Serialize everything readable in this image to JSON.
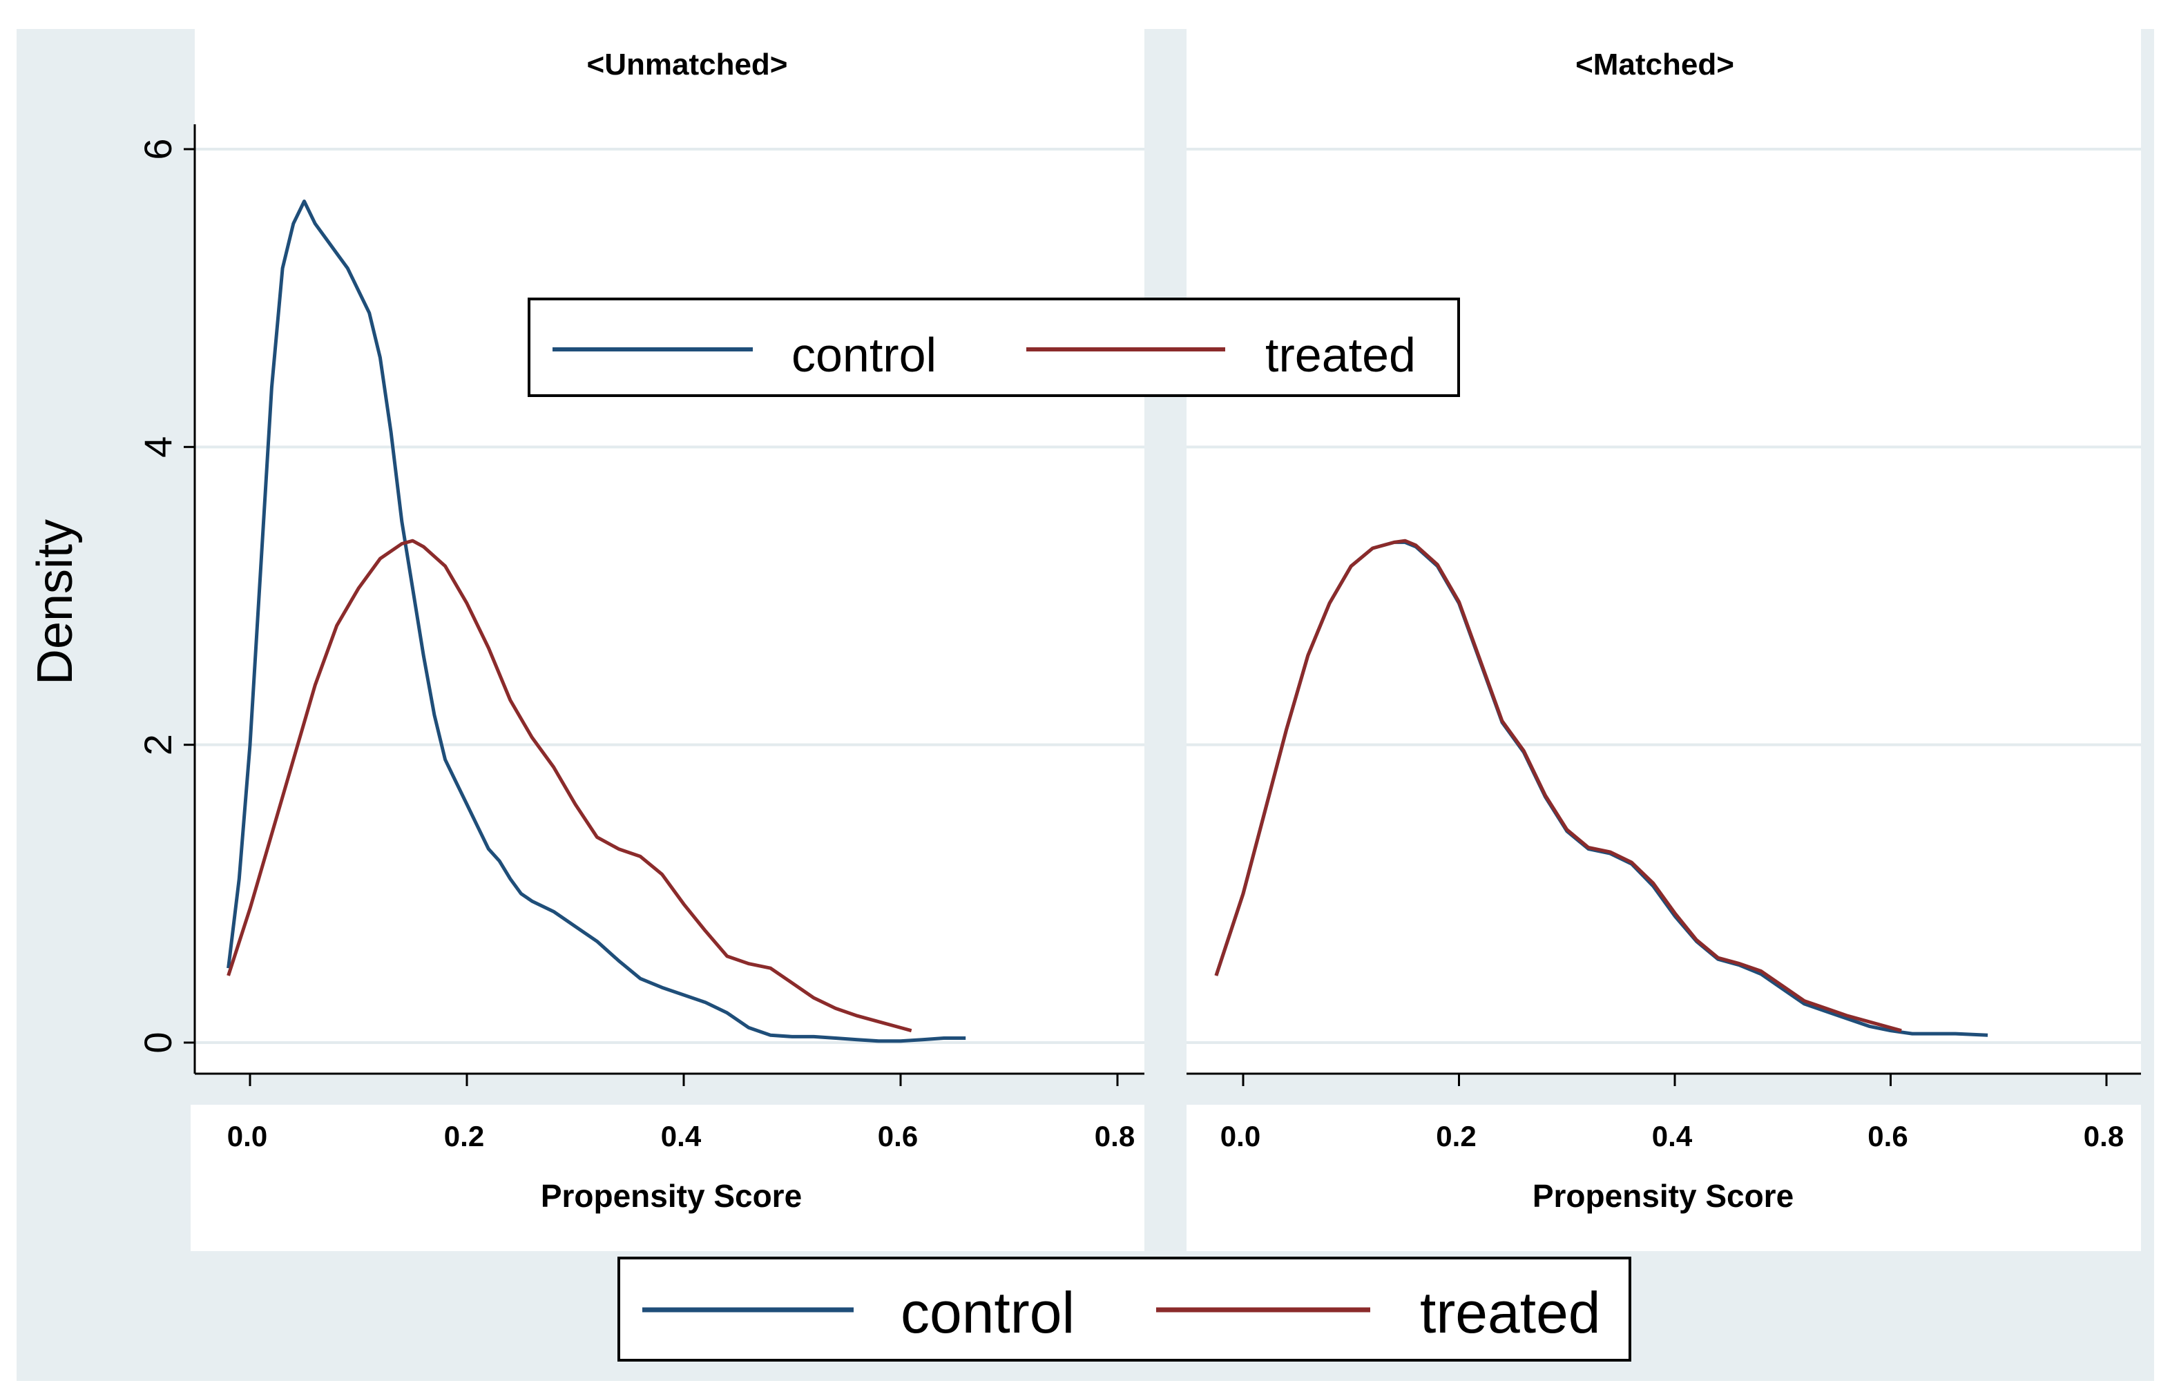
{
  "chart_data": {
    "type": "line",
    "ylabel": "Density",
    "xlabel": "Propensity Score",
    "xlim": [
      -0.03,
      0.8
    ],
    "ylim": [
      0,
      6
    ],
    "xticks": [
      "0.0",
      "0.2",
      "0.4",
      "0.6",
      "0.8"
    ],
    "yticks": [
      "0",
      "2",
      "4",
      "6"
    ],
    "legend": {
      "entries": [
        "control",
        "treated"
      ],
      "placement": "top-center (inside left panel) and bottom (below panels)"
    },
    "colors": {
      "control": "#1f4e79",
      "treated": "#8b2b2b"
    },
    "panels": [
      {
        "title": "<Unmatched>",
        "series": [
          {
            "name": "control",
            "x": [
              -0.02,
              -0.01,
              0.0,
              0.01,
              0.02,
              0.03,
              0.04,
              0.05,
              0.06,
              0.07,
              0.08,
              0.09,
              0.1,
              0.11,
              0.12,
              0.13,
              0.14,
              0.15,
              0.16,
              0.17,
              0.18,
              0.19,
              0.2,
              0.21,
              0.22,
              0.23,
              0.24,
              0.25,
              0.26,
              0.28,
              0.3,
              0.32,
              0.34,
              0.36,
              0.38,
              0.4,
              0.42,
              0.44,
              0.46,
              0.48,
              0.5,
              0.52,
              0.54,
              0.56,
              0.58,
              0.6,
              0.62,
              0.64,
              0.66
            ],
            "values": [
              0.5,
              1.1,
              2.0,
              3.2,
              4.4,
              5.2,
              5.5,
              5.65,
              5.5,
              5.4,
              5.3,
              5.2,
              5.05,
              4.9,
              4.6,
              4.1,
              3.5,
              3.05,
              2.6,
              2.2,
              1.9,
              1.75,
              1.6,
              1.45,
              1.3,
              1.22,
              1.1,
              1.0,
              0.95,
              0.88,
              0.78,
              0.68,
              0.55,
              0.43,
              0.37,
              0.32,
              0.27,
              0.2,
              0.1,
              0.05,
              0.04,
              0.04,
              0.03,
              0.02,
              0.01,
              0.01,
              0.02,
              0.03,
              0.03
            ]
          },
          {
            "name": "treated",
            "x": [
              -0.02,
              0.0,
              0.02,
              0.04,
              0.06,
              0.08,
              0.1,
              0.12,
              0.14,
              0.15,
              0.16,
              0.18,
              0.2,
              0.22,
              0.24,
              0.26,
              0.28,
              0.3,
              0.32,
              0.34,
              0.36,
              0.38,
              0.4,
              0.42,
              0.44,
              0.46,
              0.48,
              0.5,
              0.52,
              0.54,
              0.56,
              0.58,
              0.6,
              0.61
            ],
            "values": [
              0.45,
              0.9,
              1.4,
              1.9,
              2.4,
              2.8,
              3.05,
              3.25,
              3.35,
              3.37,
              3.33,
              3.2,
              2.95,
              2.65,
              2.3,
              2.05,
              1.85,
              1.6,
              1.38,
              1.3,
              1.25,
              1.13,
              0.93,
              0.75,
              0.58,
              0.53,
              0.5,
              0.4,
              0.3,
              0.23,
              0.18,
              0.14,
              0.1,
              0.08
            ]
          }
        ]
      },
      {
        "title": "<Matched>",
        "series": [
          {
            "name": "control",
            "x": [
              -0.025,
              0.0,
              0.02,
              0.04,
              0.06,
              0.08,
              0.1,
              0.12,
              0.14,
              0.15,
              0.16,
              0.18,
              0.2,
              0.22,
              0.24,
              0.26,
              0.28,
              0.3,
              0.32,
              0.34,
              0.36,
              0.38,
              0.4,
              0.42,
              0.44,
              0.46,
              0.48,
              0.5,
              0.52,
              0.54,
              0.56,
              0.58,
              0.6,
              0.62,
              0.64,
              0.66,
              0.69
            ],
            "values": [
              0.45,
              1.0,
              1.55,
              2.1,
              2.6,
              2.95,
              3.2,
              3.32,
              3.36,
              3.36,
              3.33,
              3.2,
              2.95,
              2.55,
              2.15,
              1.95,
              1.65,
              1.42,
              1.3,
              1.27,
              1.2,
              1.05,
              0.85,
              0.68,
              0.56,
              0.52,
              0.46,
              0.36,
              0.26,
              0.21,
              0.16,
              0.11,
              0.08,
              0.06,
              0.06,
              0.06,
              0.05
            ]
          },
          {
            "name": "treated",
            "x": [
              -0.025,
              0.0,
              0.02,
              0.04,
              0.06,
              0.08,
              0.1,
              0.12,
              0.14,
              0.15,
              0.16,
              0.18,
              0.2,
              0.22,
              0.24,
              0.26,
              0.28,
              0.3,
              0.32,
              0.34,
              0.36,
              0.38,
              0.4,
              0.42,
              0.44,
              0.46,
              0.48,
              0.5,
              0.52,
              0.54,
              0.56,
              0.58,
              0.6,
              0.61
            ],
            "values": [
              0.45,
              1.0,
              1.55,
              2.1,
              2.6,
              2.95,
              3.2,
              3.32,
              3.36,
              3.37,
              3.34,
              3.21,
              2.96,
              2.56,
              2.16,
              1.96,
              1.66,
              1.43,
              1.31,
              1.28,
              1.21,
              1.07,
              0.87,
              0.69,
              0.57,
              0.53,
              0.48,
              0.38,
              0.28,
              0.23,
              0.18,
              0.14,
              0.1,
              0.08
            ]
          }
        ]
      }
    ]
  }
}
